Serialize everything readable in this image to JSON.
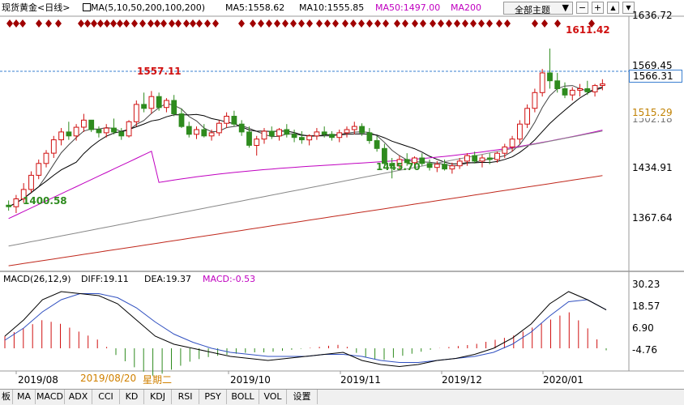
{
  "header": {
    "title": "现货黄金<日线>",
    "ma_label": "MA(5,10,50,200,100,200)",
    "ma5": "MA5:1558.62",
    "ma10": "MA10:1555.85",
    "ma50": "MA50:1497.00",
    "ma200": "MA200",
    "theme_button": "全部主题",
    "theme_arrow": "▼",
    "btn_minus": "−",
    "btn_plus": "+"
  },
  "price_axis": {
    "labels": [
      "1636.72",
      "1569.45",
      "1502.18",
      "1434.91",
      "1367.64"
    ],
    "current_price": "1566.31",
    "ma50_price": "1515.29"
  },
  "annotations": {
    "high": "1611.42",
    "peak_aug": "1557.11",
    "low_nov": "1445.70",
    "low_aug": "1400.58"
  },
  "macd": {
    "label": "MACD(26,12,9)",
    "diff": "DIFF:19.11",
    "dea": "DEA:19.37",
    "macd": "MACD:-0.53",
    "axis": [
      "30.23",
      "18.57",
      "6.90",
      "-4.76"
    ]
  },
  "date_axis": {
    "labels": [
      "2019/08",
      "2019/10",
      "2019/11",
      "2019/12",
      "2020/01"
    ],
    "cursor_date": "2019/08/20",
    "cursor_weekday": "星期二"
  },
  "bottom_tabs": [
    "板",
    "MA",
    "MACD",
    "ADX",
    "CCI",
    "KD",
    "KDJ",
    "RSI",
    "PSY",
    "BOLL",
    "VOL",
    "设置"
  ],
  "colors": {
    "up": "#d01010",
    "down": "#2e8b1e",
    "ma50": "#c000c0",
    "ma100": "#888888",
    "ma200": "#c0281c",
    "ma10": "#000000",
    "diamond": "#a00000"
  },
  "chart_data": {
    "type": "candlestick",
    "price_range": [
      1330,
      1650
    ],
    "candles": [
      [
        1412,
        1418,
        1405,
        1410
      ],
      [
        1410,
        1425,
        1402,
        1420
      ],
      [
        1420,
        1440,
        1415,
        1432
      ],
      [
        1432,
        1455,
        1428,
        1450
      ],
      [
        1450,
        1470,
        1445,
        1465
      ],
      [
        1465,
        1482,
        1460,
        1478
      ],
      [
        1478,
        1500,
        1472,
        1495
      ],
      [
        1495,
        1510,
        1488,
        1505
      ],
      [
        1505,
        1518,
        1495,
        1500
      ],
      [
        1500,
        1515,
        1494,
        1511
      ],
      [
        1511,
        1528,
        1505,
        1520
      ],
      [
        1520,
        1518,
        1505,
        1508
      ],
      [
        1508,
        1512,
        1498,
        1504
      ],
      [
        1504,
        1515,
        1498,
        1510
      ],
      [
        1510,
        1522,
        1502,
        1505
      ],
      [
        1505,
        1510,
        1495,
        1500
      ],
      [
        1500,
        1520,
        1498,
        1518
      ],
      [
        1518,
        1545,
        1512,
        1540
      ],
      [
        1540,
        1555,
        1530,
        1535
      ],
      [
        1535,
        1557,
        1528,
        1550
      ],
      [
        1550,
        1555,
        1532,
        1536
      ],
      [
        1536,
        1548,
        1530,
        1545
      ],
      [
        1545,
        1552,
        1525,
        1528
      ],
      [
        1528,
        1535,
        1510,
        1512
      ],
      [
        1512,
        1518,
        1498,
        1502
      ],
      [
        1502,
        1512,
        1496,
        1508
      ],
      [
        1508,
        1515,
        1498,
        1500
      ],
      [
        1500,
        1508,
        1494,
        1504
      ],
      [
        1504,
        1520,
        1500,
        1516
      ],
      [
        1516,
        1530,
        1510,
        1525
      ],
      [
        1525,
        1532,
        1512,
        1515
      ],
      [
        1515,
        1520,
        1500,
        1505
      ],
      [
        1505,
        1512,
        1485,
        1488
      ],
      [
        1488,
        1500,
        1475,
        1496
      ],
      [
        1496,
        1510,
        1490,
        1506
      ],
      [
        1506,
        1512,
        1496,
        1500
      ],
      [
        1500,
        1510,
        1494,
        1508
      ],
      [
        1508,
        1515,
        1498,
        1502
      ],
      [
        1502,
        1508,
        1492,
        1498
      ],
      [
        1498,
        1506,
        1490,
        1495
      ],
      [
        1495,
        1502,
        1488,
        1500
      ],
      [
        1500,
        1510,
        1495,
        1505
      ],
      [
        1505,
        1512,
        1498,
        1502
      ],
      [
        1502,
        1506,
        1494,
        1498
      ],
      [
        1498,
        1508,
        1492,
        1504
      ],
      [
        1504,
        1512,
        1498,
        1508
      ],
      [
        1508,
        1518,
        1502,
        1512
      ],
      [
        1512,
        1516,
        1500,
        1504
      ],
      [
        1504,
        1510,
        1490,
        1494
      ],
      [
        1494,
        1500,
        1480,
        1484
      ],
      [
        1484,
        1490,
        1460,
        1465
      ],
      [
        1465,
        1472,
        1446,
        1462
      ],
      [
        1462,
        1475,
        1458,
        1470
      ],
      [
        1470,
        1478,
        1462,
        1466
      ],
      [
        1466,
        1474,
        1460,
        1472
      ],
      [
        1472,
        1478,
        1462,
        1465
      ],
      [
        1465,
        1470,
        1456,
        1460
      ],
      [
        1460,
        1468,
        1454,
        1464
      ],
      [
        1464,
        1470,
        1456,
        1458
      ],
      [
        1458,
        1466,
        1452,
        1462
      ],
      [
        1462,
        1472,
        1458,
        1468
      ],
      [
        1468,
        1478,
        1462,
        1475
      ],
      [
        1475,
        1480,
        1465,
        1468
      ],
      [
        1468,
        1476,
        1460,
        1472
      ],
      [
        1472,
        1478,
        1464,
        1470
      ],
      [
        1470,
        1480,
        1466,
        1478
      ],
      [
        1478,
        1490,
        1472,
        1486
      ],
      [
        1486,
        1500,
        1480,
        1496
      ],
      [
        1496,
        1520,
        1490,
        1515
      ],
      [
        1515,
        1540,
        1510,
        1535
      ],
      [
        1535,
        1560,
        1530,
        1555
      ],
      [
        1555,
        1585,
        1550,
        1580
      ],
      [
        1580,
        1611,
        1560,
        1570
      ],
      [
        1570,
        1580,
        1555,
        1560
      ],
      [
        1560,
        1568,
        1548,
        1552
      ],
      [
        1552,
        1562,
        1545,
        1558
      ],
      [
        1558,
        1566,
        1550,
        1560
      ],
      [
        1560,
        1570,
        1552,
        1556
      ],
      [
        1556,
        1566,
        1550,
        1564
      ],
      [
        1564,
        1572,
        1558,
        1566
      ]
    ],
    "macd_series": {
      "diff": [
        6,
        14,
        24,
        28,
        27,
        26,
        22,
        14,
        6,
        2,
        0,
        -2,
        -4,
        -5,
        -6,
        -5,
        -4,
        -3,
        -2,
        -6,
        -8,
        -9,
        -8,
        -6,
        -5,
        -3,
        0,
        5,
        12,
        22,
        28,
        24,
        19
      ],
      "dea": [
        4,
        10,
        18,
        24,
        27,
        27,
        25,
        20,
        13,
        7,
        3,
        0,
        -2,
        -3,
        -4,
        -4,
        -4,
        -3,
        -3,
        -4,
        -6,
        -7,
        -7,
        -6,
        -5,
        -4,
        -2,
        2,
        8,
        16,
        23,
        24,
        19
      ],
      "hist": [
        6,
        10,
        14,
        12,
        8,
        4,
        -4,
        -10,
        -14,
        -10,
        -6,
        -4,
        -3,
        -2,
        -2,
        -1,
        0,
        1,
        2,
        -4,
        -6,
        -4,
        -2,
        0,
        1,
        2,
        4,
        6,
        10,
        14,
        18,
        10,
        -1
      ]
    }
  }
}
